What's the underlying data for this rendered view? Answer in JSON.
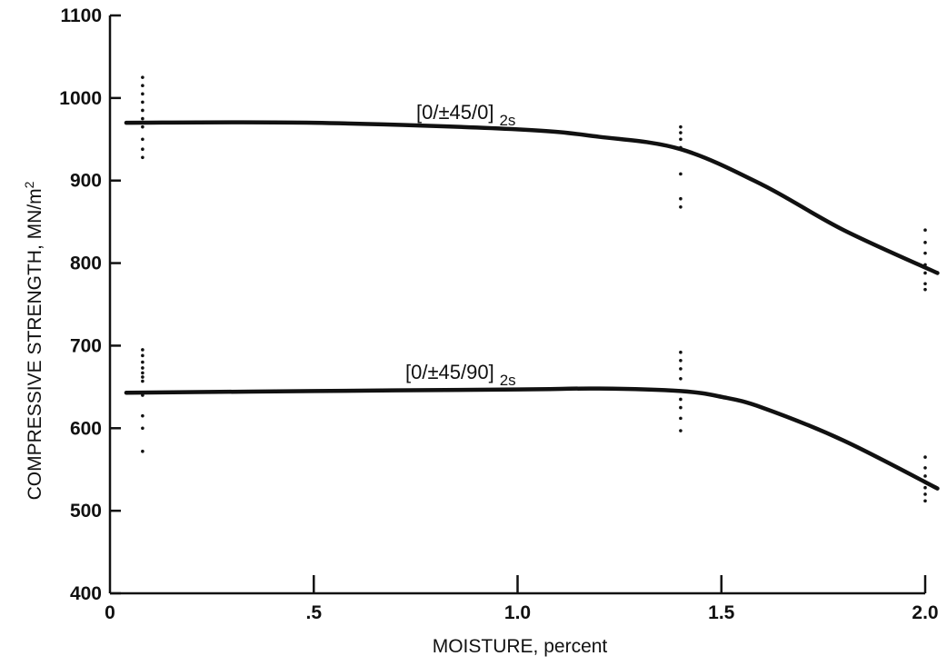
{
  "chart_data": {
    "type": "line",
    "title": "",
    "xlabel": "MOISTURE, percent",
    "ylabel_main": "COMPRESSIVE STRENGTH, MN/m",
    "ylabel_sup": "2",
    "xlim": [
      0,
      2.0
    ],
    "ylim": [
      400,
      1100
    ],
    "x_ticks": [
      0,
      0.5,
      1.0,
      1.5,
      2.0
    ],
    "x_tick_labels": [
      "0",
      ".5",
      "1.0",
      "1.5",
      "2.0"
    ],
    "y_ticks": [
      400,
      500,
      600,
      700,
      800,
      900,
      1000,
      1100
    ],
    "y_tick_labels": [
      "400",
      "500",
      "600",
      "700",
      "800",
      "900",
      "1000",
      "1100"
    ],
    "grid": false,
    "series": [
      {
        "name": "[0/±45/0]",
        "name_sub": "2s",
        "curve": [
          [
            0.04,
            970
          ],
          [
            0.5,
            970
          ],
          [
            1.0,
            962
          ],
          [
            1.2,
            953
          ],
          [
            1.4,
            938
          ],
          [
            1.6,
            895
          ],
          [
            1.8,
            840
          ],
          [
            2.03,
            788
          ]
        ],
        "points": [
          [
            0.08,
            1025
          ],
          [
            0.08,
            1015
          ],
          [
            0.08,
            1005
          ],
          [
            0.08,
            995
          ],
          [
            0.08,
            985
          ],
          [
            0.08,
            975
          ],
          [
            0.08,
            965
          ],
          [
            0.08,
            950
          ],
          [
            0.08,
            938
          ],
          [
            0.08,
            928
          ],
          [
            1.4,
            965
          ],
          [
            1.4,
            958
          ],
          [
            1.4,
            950
          ],
          [
            1.4,
            940
          ],
          [
            1.4,
            908
          ],
          [
            1.4,
            878
          ],
          [
            1.4,
            868
          ],
          [
            2.0,
            840
          ],
          [
            2.0,
            825
          ],
          [
            2.0,
            812
          ],
          [
            2.0,
            798
          ],
          [
            2.0,
            788
          ],
          [
            2.0,
            775
          ],
          [
            2.0,
            768
          ]
        ]
      },
      {
        "name": "[0/±45/90]",
        "name_sub": "2s",
        "curve": [
          [
            0.04,
            643
          ],
          [
            0.5,
            645
          ],
          [
            1.0,
            647
          ],
          [
            1.2,
            648
          ],
          [
            1.4,
            645
          ],
          [
            1.5,
            638
          ],
          [
            1.6,
            625
          ],
          [
            1.8,
            585
          ],
          [
            2.03,
            527
          ]
        ],
        "points": [
          [
            0.08,
            695
          ],
          [
            0.08,
            688
          ],
          [
            0.08,
            680
          ],
          [
            0.08,
            673
          ],
          [
            0.08,
            667
          ],
          [
            0.08,
            662
          ],
          [
            0.08,
            657
          ],
          [
            0.08,
            640
          ],
          [
            0.08,
            615
          ],
          [
            0.08,
            600
          ],
          [
            0.08,
            572
          ],
          [
            1.4,
            692
          ],
          [
            1.4,
            682
          ],
          [
            1.4,
            672
          ],
          [
            1.4,
            660
          ],
          [
            1.4,
            645
          ],
          [
            1.4,
            635
          ],
          [
            1.4,
            625
          ],
          [
            1.4,
            612
          ],
          [
            1.4,
            597
          ],
          [
            2.0,
            565
          ],
          [
            2.0,
            552
          ],
          [
            2.0,
            542
          ],
          [
            2.0,
            535
          ],
          [
            2.0,
            528
          ],
          [
            2.0,
            520
          ],
          [
            2.0,
            512
          ]
        ]
      }
    ]
  }
}
